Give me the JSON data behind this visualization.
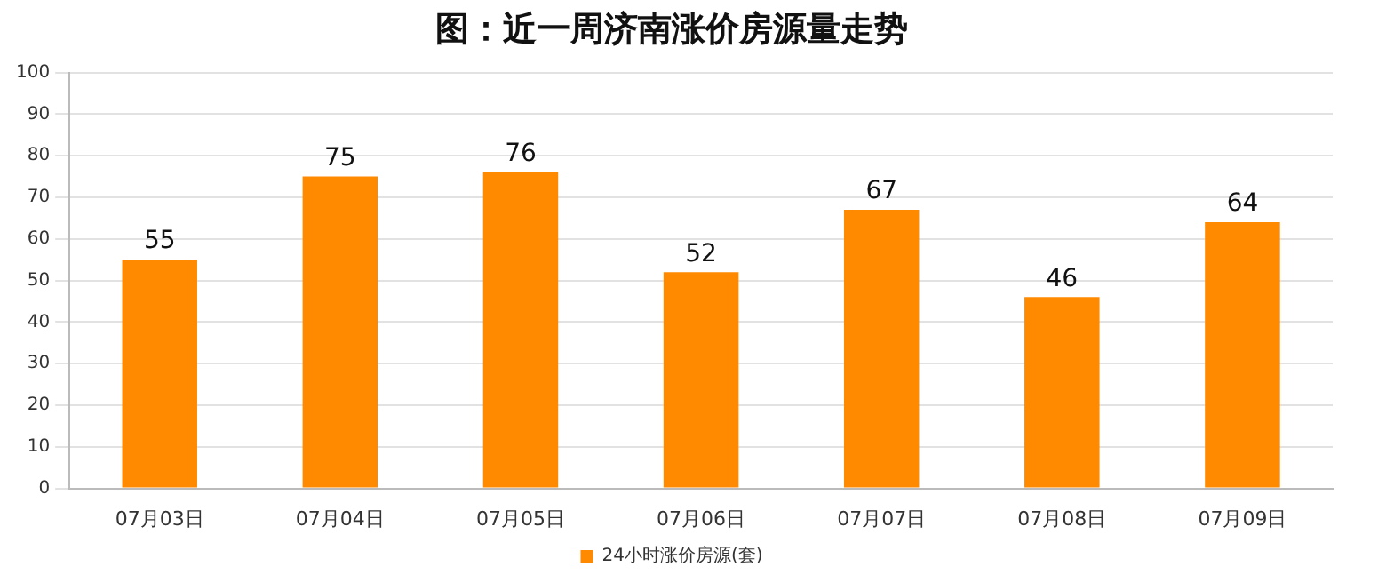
{
  "chart_data": {
    "type": "bar",
    "title": "图：近一周济南涨价房源量走势",
    "categories": [
      "07月03日",
      "07月04日",
      "07月05日",
      "07月06日",
      "07月07日",
      "07月08日",
      "07月09日"
    ],
    "series": [
      {
        "name": "24小时涨价房源(套)",
        "color": "#ff8a00",
        "values": [
          55,
          75,
          76,
          52,
          67,
          46,
          64
        ]
      }
    ],
    "ylim": [
      0,
      100
    ],
    "yticks": [
      0,
      10,
      20,
      30,
      40,
      50,
      60,
      70,
      80,
      90,
      100
    ],
    "grid": "y",
    "legend": "bottom",
    "data_labels": true
  }
}
